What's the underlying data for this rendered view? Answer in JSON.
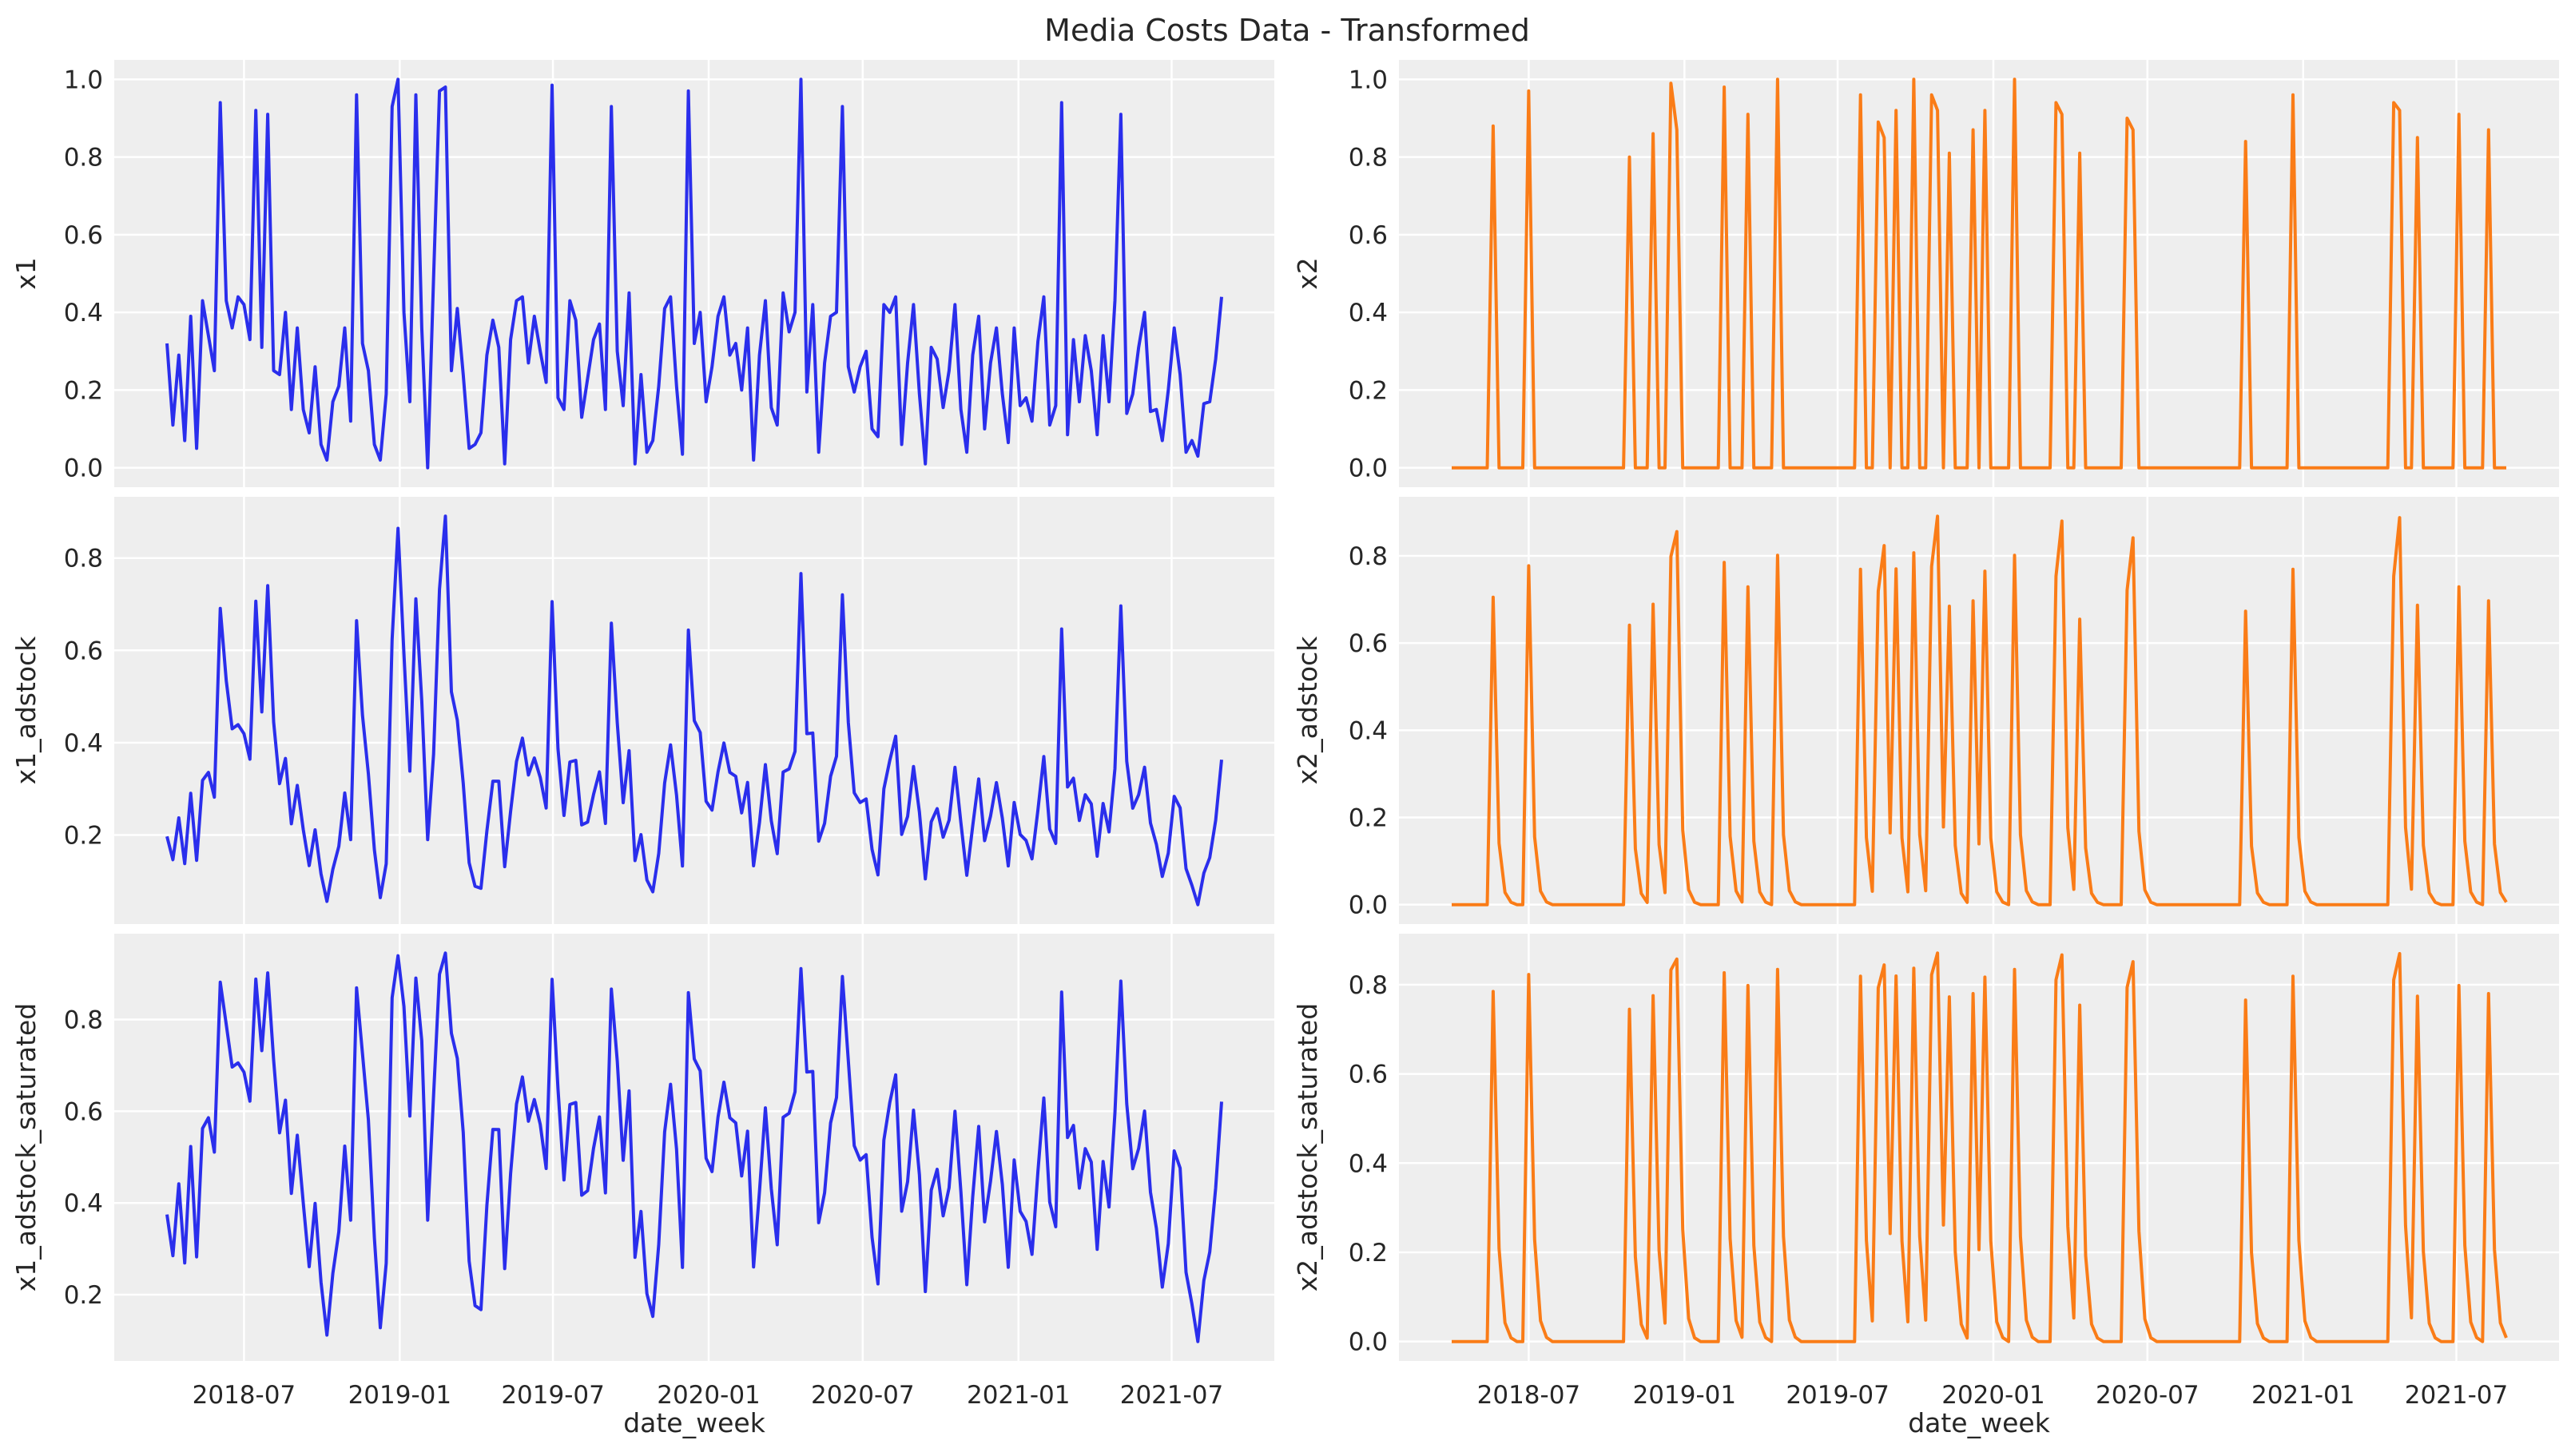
{
  "title": "Media Costs Data - Transformed",
  "chart_data": {
    "type": "line",
    "title": "Media Costs Data - Transformed",
    "xlabel": "date_week",
    "grid": true,
    "background": "#eeeeee",
    "x_ticks": [
      "2018-07",
      "2019-01",
      "2019-07",
      "2020-01",
      "2020-07",
      "2021-01",
      "2021-07"
    ],
    "x": [
      "2018-04-01",
      "2018-04-08",
      "2018-04-15",
      "2018-04-22",
      "2018-04-29",
      "2018-05-06",
      "2018-05-13",
      "2018-05-20",
      "2018-05-27",
      "2018-06-03",
      "2018-06-10",
      "2018-06-17",
      "2018-06-24",
      "2018-07-01",
      "2018-07-08",
      "2018-07-15",
      "2018-07-22",
      "2018-07-29",
      "2018-08-05",
      "2018-08-12",
      "2018-08-19",
      "2018-08-26",
      "2018-09-02",
      "2018-09-09",
      "2018-09-16",
      "2018-09-23",
      "2018-09-30",
      "2018-10-07",
      "2018-10-14",
      "2018-10-21",
      "2018-10-28",
      "2018-11-04",
      "2018-11-11",
      "2018-11-18",
      "2018-11-25",
      "2018-12-02",
      "2018-12-09",
      "2018-12-16",
      "2018-12-23",
      "2018-12-30",
      "2019-01-06",
      "2019-01-13",
      "2019-01-20",
      "2019-01-27",
      "2019-02-03",
      "2019-02-10",
      "2019-02-17",
      "2019-02-24",
      "2019-03-03",
      "2019-03-10",
      "2019-03-17",
      "2019-03-24",
      "2019-03-31",
      "2019-04-07",
      "2019-04-14",
      "2019-04-21",
      "2019-04-28",
      "2019-05-05",
      "2019-05-12",
      "2019-05-19",
      "2019-05-26",
      "2019-06-02",
      "2019-06-09",
      "2019-06-16",
      "2019-06-23",
      "2019-06-30",
      "2019-07-07",
      "2019-07-14",
      "2019-07-21",
      "2019-07-28",
      "2019-08-04",
      "2019-08-11",
      "2019-08-18",
      "2019-08-25",
      "2019-09-01",
      "2019-09-08",
      "2019-09-15",
      "2019-09-22",
      "2019-09-29",
      "2019-10-06",
      "2019-10-13",
      "2019-10-20",
      "2019-10-27",
      "2019-11-03",
      "2019-11-10",
      "2019-11-17",
      "2019-11-24",
      "2019-12-01",
      "2019-12-08",
      "2019-12-15",
      "2019-12-22",
      "2019-12-29",
      "2020-01-05",
      "2020-01-12",
      "2020-01-19",
      "2020-01-26",
      "2020-02-02",
      "2020-02-09",
      "2020-02-16",
      "2020-02-23",
      "2020-03-01",
      "2020-03-08",
      "2020-03-15",
      "2020-03-22",
      "2020-03-29",
      "2020-04-05",
      "2020-04-12",
      "2020-04-19",
      "2020-04-26",
      "2020-05-03",
      "2020-05-10",
      "2020-05-17",
      "2020-05-24",
      "2020-05-31",
      "2020-06-07",
      "2020-06-14",
      "2020-06-21",
      "2020-06-28",
      "2020-07-05",
      "2020-07-12",
      "2020-07-19",
      "2020-07-26",
      "2020-08-02",
      "2020-08-09",
      "2020-08-16",
      "2020-08-23",
      "2020-08-30",
      "2020-09-06",
      "2020-09-13",
      "2020-09-20",
      "2020-09-27",
      "2020-10-04",
      "2020-10-11",
      "2020-10-18",
      "2020-10-25",
      "2020-11-01",
      "2020-11-08",
      "2020-11-15",
      "2020-11-22",
      "2020-11-29",
      "2020-12-06",
      "2020-12-13",
      "2020-12-20",
      "2020-12-27",
      "2021-01-03",
      "2021-01-10",
      "2021-01-17",
      "2021-01-24",
      "2021-01-31",
      "2021-02-07",
      "2021-02-14",
      "2021-02-21",
      "2021-02-28",
      "2021-03-07",
      "2021-03-14",
      "2021-03-21",
      "2021-03-28",
      "2021-04-04",
      "2021-04-11",
      "2021-04-18",
      "2021-04-25",
      "2021-05-02",
      "2021-05-09",
      "2021-05-16",
      "2021-05-23",
      "2021-05-30",
      "2021-06-06",
      "2021-06-13",
      "2021-06-20",
      "2021-06-27",
      "2021-07-04",
      "2021-07-11",
      "2021-07-18",
      "2021-07-25",
      "2021-08-01",
      "2021-08-08",
      "2021-08-15",
      "2021-08-22",
      "2021-08-29"
    ],
    "series": {
      "x1": [
        0.32,
        0.11,
        0.29,
        0.07,
        0.39,
        0.05,
        0.43,
        0.34,
        0.25,
        0.94,
        0.43,
        0.36,
        0.44,
        0.42,
        0.33,
        0.92,
        0.31,
        0.91,
        0.25,
        0.24,
        0.4,
        0.15,
        0.36,
        0.15,
        0.09,
        0.26,
        0.06,
        0.02,
        0.17,
        0.21,
        0.36,
        0.12,
        0.96,
        0.32,
        0.25,
        0.06,
        0.02,
        0.19,
        0.93,
        1.0,
        0.4,
        0.17,
        0.96,
        0.36,
        0.0,
        0.49,
        0.97,
        0.98,
        0.25,
        0.41,
        0.24,
        0.05,
        0.06,
        0.09,
        0.29,
        0.38,
        0.31,
        0.01,
        0.33,
        0.43,
        0.44,
        0.27,
        0.39,
        0.3,
        0.22,
        0.985,
        0.18,
        0.15,
        0.43,
        0.38,
        0.13,
        0.23,
        0.33,
        0.37,
        0.15,
        0.93,
        0.3,
        0.16,
        0.45,
        0.01,
        0.24,
        0.04,
        0.07,
        0.21,
        0.41,
        0.44,
        0.21,
        0.035,
        0.97,
        0.32,
        0.4,
        0.17,
        0.26,
        0.39,
        0.44,
        0.29,
        0.32,
        0.2,
        0.36,
        0.02,
        0.29,
        0.43,
        0.155,
        0.11,
        0.45,
        0.35,
        0.4,
        1.0,
        0.195,
        0.42,
        0.04,
        0.27,
        0.39,
        0.4,
        0.93,
        0.26,
        0.195,
        0.26,
        0.3,
        0.1,
        0.08,
        0.42,
        0.4,
        0.44,
        0.06,
        0.27,
        0.42,
        0.19,
        0.01,
        0.31,
        0.28,
        0.155,
        0.25,
        0.42,
        0.15,
        0.04,
        0.29,
        0.39,
        0.1,
        0.27,
        0.36,
        0.19,
        0.065,
        0.36,
        0.16,
        0.18,
        0.12,
        0.325,
        0.44,
        0.11,
        0.16,
        0.94,
        0.085,
        0.33,
        0.17,
        0.34,
        0.25,
        0.085,
        0.34,
        0.17,
        0.43,
        0.91,
        0.14,
        0.19,
        0.31,
        0.4,
        0.145,
        0.15,
        0.07,
        0.2,
        0.36,
        0.24,
        0.04,
        0.07,
        0.03,
        0.165,
        0.17,
        0.28,
        0.44
      ],
      "x2": [
        0,
        0,
        0,
        0,
        0,
        0,
        0,
        0.88,
        0,
        0,
        0,
        0,
        0,
        0.97,
        0,
        0,
        0,
        0,
        0,
        0,
        0,
        0,
        0,
        0,
        0,
        0,
        0,
        0,
        0,
        0,
        0.8,
        0,
        0,
        0,
        0.86,
        0,
        0,
        0.99,
        0.87,
        0,
        0,
        0,
        0,
        0,
        0,
        0,
        0.98,
        0,
        0,
        0,
        0.91,
        0,
        0,
        0,
        0,
        1.0,
        0,
        0,
        0,
        0,
        0,
        0,
        0,
        0,
        0,
        0,
        0,
        0,
        0,
        0.96,
        0,
        0,
        0.89,
        0.85,
        0,
        0.92,
        0,
        0,
        1.0,
        0,
        0,
        0.96,
        0.92,
        0,
        0.81,
        0,
        0,
        0,
        0.87,
        0,
        0.92,
        0,
        0,
        0,
        0,
        1.0,
        0,
        0,
        0,
        0,
        0,
        0,
        0.94,
        0.91,
        0,
        0,
        0.81,
        0,
        0,
        0,
        0,
        0,
        0,
        0,
        0.9,
        0.87,
        0,
        0,
        0,
        0,
        0,
        0,
        0,
        0,
        0,
        0,
        0,
        0,
        0,
        0,
        0,
        0,
        0,
        0,
        0.84,
        0,
        0,
        0,
        0,
        0,
        0,
        0,
        0.96,
        0,
        0,
        0,
        0,
        0,
        0,
        0,
        0,
        0,
        0,
        0,
        0,
        0,
        0,
        0,
        0,
        0.94,
        0.92,
        0,
        0,
        0.85,
        0,
        0,
        0,
        0,
        0,
        0,
        0.91,
        0,
        0,
        0,
        0,
        0.87,
        0,
        0,
        0
      ]
    },
    "panels": [
      {
        "ylabel": "x1",
        "source": "x1",
        "transform": "raw",
        "yticks": [
          "0.0",
          "0.2",
          "0.4",
          "0.6",
          "0.8",
          "1.0"
        ]
      },
      {
        "ylabel": "x2",
        "source": "x2",
        "transform": "raw",
        "yticks": [
          "0.0",
          "0.2",
          "0.4",
          "0.6",
          "0.8",
          "1.0"
        ]
      },
      {
        "ylabel": "x1_adstock",
        "source": "x1",
        "transform": "adstock",
        "yticks": [
          "0.2",
          "0.4",
          "0.6",
          "0.8"
        ]
      },
      {
        "ylabel": "x2_adstock",
        "source": "x2",
        "transform": "adstock",
        "yticks": [
          "0.0",
          "0.2",
          "0.4",
          "0.6",
          "0.8"
        ]
      },
      {
        "ylabel": "x1_adstock_saturated",
        "source": "x1",
        "transform": "adstock_saturated",
        "yticks": [
          "0.2",
          "0.4",
          "0.6",
          "0.8"
        ]
      },
      {
        "ylabel": "x2_adstock_saturated",
        "source": "x2",
        "transform": "adstock_saturated",
        "yticks": [
          "0.0",
          "0.2",
          "0.4",
          "0.6",
          "0.8"
        ]
      }
    ],
    "colors": {
      "x1": "#2a2eec",
      "x2": "#fa7c17"
    }
  }
}
